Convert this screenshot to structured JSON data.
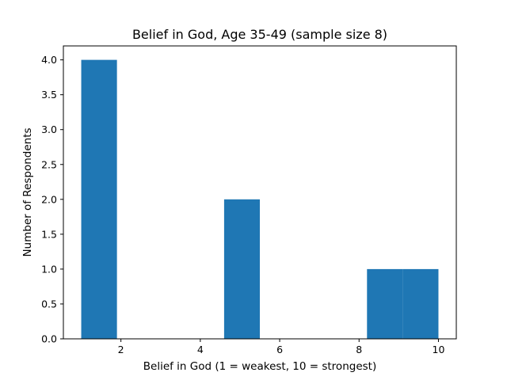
{
  "chart_data": {
    "type": "bar",
    "title": "Belief in God, Age 35-49 (sample size 8)",
    "xlabel": "Belief in God (1 = weakest, 10 = strongest)",
    "ylabel": "Number of Respondents",
    "bins": [
      {
        "start": 1.0,
        "end": 1.9,
        "count": 4
      },
      {
        "start": 1.9,
        "end": 2.8,
        "count": 0
      },
      {
        "start": 2.8,
        "end": 3.7,
        "count": 0
      },
      {
        "start": 3.7,
        "end": 4.6,
        "count": 0
      },
      {
        "start": 4.6,
        "end": 5.5,
        "count": 2
      },
      {
        "start": 5.5,
        "end": 6.4,
        "count": 0
      },
      {
        "start": 6.4,
        "end": 7.3,
        "count": 0
      },
      {
        "start": 7.3,
        "end": 8.2,
        "count": 0
      },
      {
        "start": 8.2,
        "end": 9.1,
        "count": 1
      },
      {
        "start": 9.1,
        "end": 10.0,
        "count": 1
      }
    ],
    "xlim": [
      0.55,
      10.45
    ],
    "ylim": [
      0,
      4.2
    ],
    "xticks": [
      2,
      4,
      6,
      8,
      10
    ],
    "yticks": [
      0.0,
      0.5,
      1.0,
      1.5,
      2.0,
      2.5,
      3.0,
      3.5,
      4.0
    ],
    "bar_color": "#1f77b4",
    "grid": false,
    "legend": "none"
  }
}
